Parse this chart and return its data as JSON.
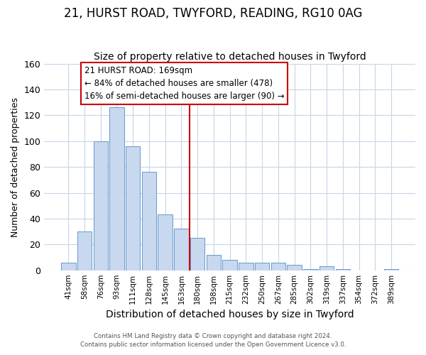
{
  "title": "21, HURST ROAD, TWYFORD, READING, RG10 0AG",
  "subtitle": "Size of property relative to detached houses in Twyford",
  "xlabel": "Distribution of detached houses by size in Twyford",
  "ylabel": "Number of detached properties",
  "bar_labels": [
    "41sqm",
    "58sqm",
    "76sqm",
    "93sqm",
    "111sqm",
    "128sqm",
    "145sqm",
    "163sqm",
    "180sqm",
    "198sqm",
    "215sqm",
    "232sqm",
    "250sqm",
    "267sqm",
    "285sqm",
    "302sqm",
    "319sqm",
    "337sqm",
    "354sqm",
    "372sqm",
    "389sqm"
  ],
  "bar_values": [
    6,
    30,
    100,
    126,
    96,
    76,
    43,
    32,
    25,
    12,
    8,
    6,
    6,
    6,
    4,
    1,
    3,
    1,
    0,
    0,
    1
  ],
  "bar_color": "#c8d8ee",
  "bar_edge_color": "#6699cc",
  "vline_x_index": 7,
  "vline_color": "#cc0000",
  "annotation_title": "21 HURST ROAD: 169sqm",
  "annotation_line1": "← 84% of detached houses are smaller (478)",
  "annotation_line2": "16% of semi-detached houses are larger (90) →",
  "annotation_box_facecolor": "#ffffff",
  "annotation_box_edge_color": "#cc0000",
  "ylim": [
    0,
    160
  ],
  "footnote1": "Contains HM Land Registry data © Crown copyright and database right 2024.",
  "footnote2": "Contains public sector information licensed under the Open Government Licence v3.0.",
  "plot_bg_color": "#ffffff",
  "fig_bg_color": "#ffffff",
  "grid_color": "#c8d4e8",
  "title_fontsize": 12,
  "subtitle_fontsize": 10,
  "ylabel_fontsize": 9,
  "xlabel_fontsize": 10
}
